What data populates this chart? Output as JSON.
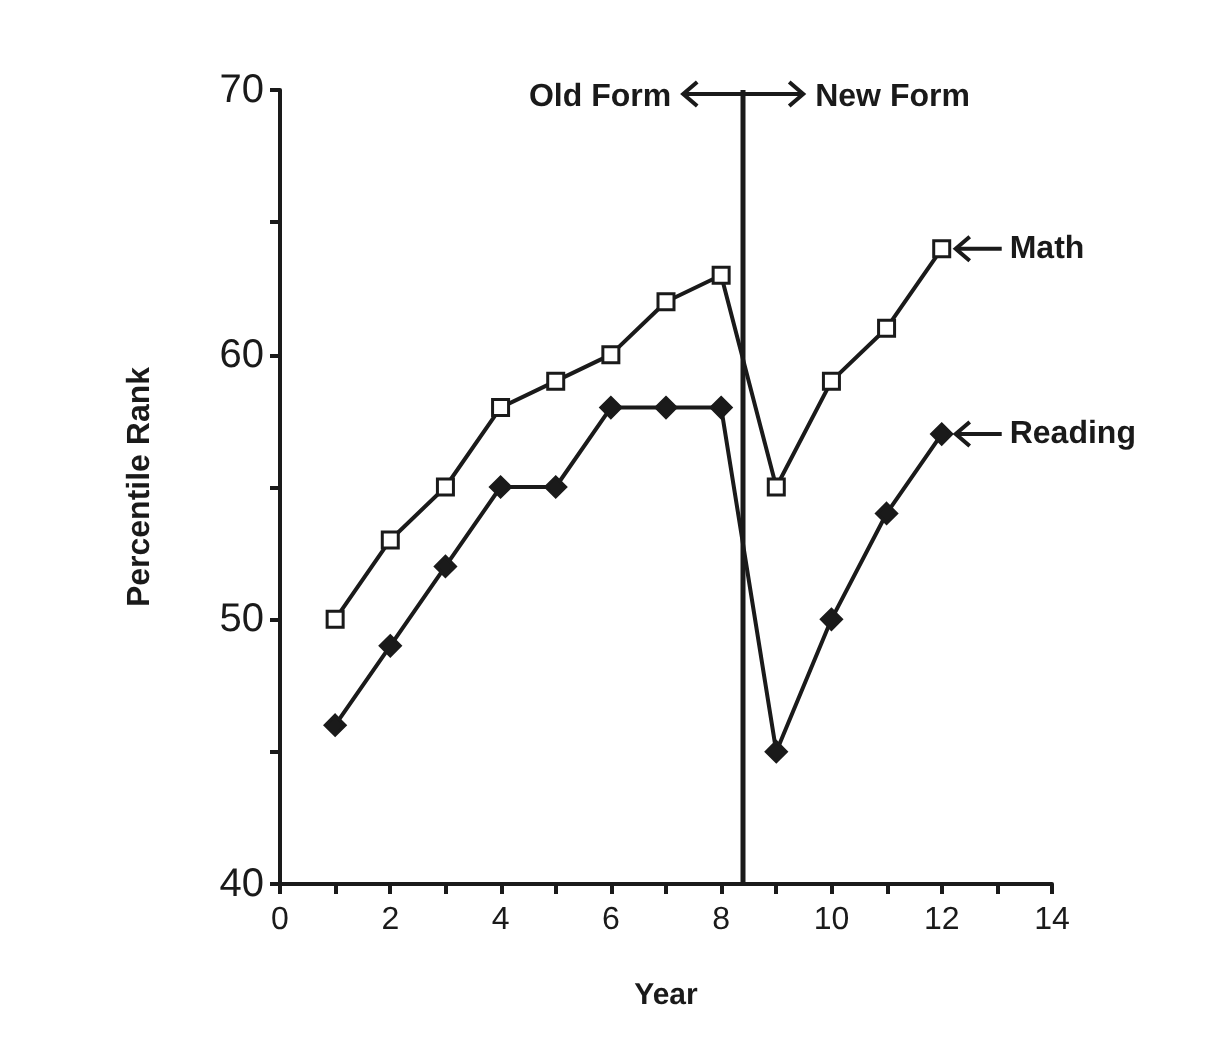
{
  "chart_data": {
    "type": "line",
    "xlabel": "Year",
    "ylabel": "Percentile Rank",
    "x": [
      1,
      2,
      3,
      4,
      5,
      6,
      7,
      8,
      9,
      10,
      11,
      12
    ],
    "series": [
      {
        "name": "Math",
        "color": "#1a1a1a",
        "marker": "square",
        "values": [
          50,
          53,
          55,
          58,
          59,
          60,
          62,
          63,
          55,
          59,
          61,
          64
        ]
      },
      {
        "name": "Reading",
        "color": "#1a1a1a",
        "marker": "diamond",
        "values": [
          46,
          49,
          52,
          55,
          55,
          58,
          58,
          58,
          45,
          50,
          54,
          57
        ]
      }
    ],
    "xlim": [
      0,
      14
    ],
    "xticks": [
      0,
      {
        "value": 1,
        "label": null
      },
      2,
      {
        "value": 3,
        "label": null
      },
      4,
      {
        "value": 5,
        "label": null
      },
      6,
      {
        "value": 7,
        "label": null
      },
      8,
      {
        "value": 9,
        "label": null
      },
      10,
      {
        "value": 11,
        "label": null
      },
      12,
      {
        "value": 13,
        "label": null
      },
      14
    ],
    "ylim": [
      40,
      70
    ],
    "yticks": [
      40,
      {
        "value": 45,
        "label": null
      },
      50,
      {
        "value": 55,
        "label": null
      },
      60,
      {
        "value": 65,
        "label": null
      },
      70
    ],
    "ref_lines": [
      {
        "axis": "x",
        "value": 8.4,
        "color": "#1a1a1a"
      }
    ],
    "annotations": [
      "Old Form",
      "New Form"
    ],
    "grid": false,
    "legend": "right",
    "line_style": "solid"
  }
}
